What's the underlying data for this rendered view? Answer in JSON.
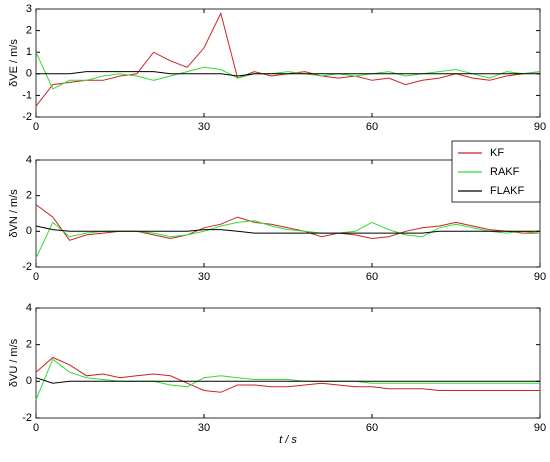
{
  "chart_data": [
    {
      "type": "line",
      "ylabel": "δVE / m/s",
      "x": [
        0,
        3,
        6,
        9,
        12,
        15,
        18,
        21,
        24,
        27,
        30,
        33,
        36,
        39,
        42,
        45,
        48,
        51,
        54,
        57,
        60,
        63,
        66,
        69,
        72,
        75,
        78,
        81,
        84,
        87,
        90
      ],
      "xlim": [
        0,
        90
      ],
      "xticks": [
        0,
        30,
        60,
        90
      ],
      "ylim": [
        -2,
        3
      ],
      "yticks": [
        -2,
        -1,
        0,
        1,
        2,
        3
      ],
      "series": [
        {
          "color": "#cc2222",
          "values": [
            -1.5,
            -0.5,
            -0.4,
            -0.3,
            -0.3,
            -0.1,
            0.0,
            1.0,
            0.6,
            0.3,
            1.2,
            2.8,
            -0.2,
            0.1,
            -0.1,
            0.0,
            0.1,
            -0.1,
            -0.2,
            -0.1,
            -0.3,
            -0.2,
            -0.5,
            -0.3,
            -0.2,
            0.0,
            -0.2,
            -0.3,
            -0.1,
            0.0,
            0.1
          ]
        },
        {
          "color": "#33dd33",
          "values": [
            1.0,
            -0.7,
            -0.3,
            -0.3,
            -0.1,
            0.0,
            -0.1,
            -0.3,
            -0.1,
            0.1,
            0.3,
            0.2,
            -0.2,
            0.0,
            0.0,
            0.1,
            0.0,
            -0.1,
            0.0,
            -0.1,
            0.0,
            0.1,
            -0.1,
            0.0,
            0.1,
            0.2,
            0.0,
            -0.2,
            0.1,
            0.0,
            0.1
          ]
        },
        {
          "color": "#000000",
          "values": [
            0.0,
            0.0,
            0.0,
            0.1,
            0.1,
            0.1,
            0.1,
            0.1,
            0.0,
            0.0,
            0.0,
            0.0,
            -0.1,
            0.0,
            0.0,
            0.0,
            0.0,
            0.0,
            0.0,
            0.0,
            0.0,
            0.0,
            0.0,
            0.0,
            0.0,
            0.0,
            0.0,
            0.0,
            0.0,
            0.0,
            0.0
          ]
        }
      ]
    },
    {
      "type": "line",
      "ylabel": "δVN / m/s",
      "legend": "upper right",
      "x": [
        0,
        3,
        6,
        9,
        12,
        15,
        18,
        21,
        24,
        27,
        30,
        33,
        36,
        39,
        42,
        45,
        48,
        51,
        54,
        57,
        60,
        63,
        66,
        69,
        72,
        75,
        78,
        81,
        84,
        87,
        90
      ],
      "xlim": [
        0,
        90
      ],
      "xticks": [
        0,
        30,
        60,
        90
      ],
      "ylim": [
        -2,
        4
      ],
      "yticks": [
        -2,
        0,
        2,
        4
      ],
      "series": [
        {
          "name": "KF",
          "color": "#cc2222",
          "values": [
            1.5,
            0.8,
            -0.5,
            -0.2,
            -0.1,
            0.0,
            0.0,
            -0.2,
            -0.4,
            -0.2,
            0.2,
            0.4,
            0.8,
            0.5,
            0.4,
            0.2,
            0.0,
            -0.3,
            -0.1,
            -0.2,
            -0.4,
            -0.3,
            0.0,
            0.2,
            0.3,
            0.5,
            0.3,
            0.1,
            0.0,
            -0.1,
            -0.1
          ]
        },
        {
          "name": "RAKF",
          "color": "#33dd33",
          "values": [
            -1.5,
            0.5,
            -0.3,
            -0.1,
            0.0,
            0.0,
            0.0,
            -0.1,
            -0.3,
            -0.2,
            0.0,
            0.3,
            0.5,
            0.6,
            0.3,
            0.1,
            0.0,
            -0.1,
            -0.1,
            0.0,
            0.5,
            0.1,
            -0.2,
            -0.3,
            0.2,
            0.4,
            0.2,
            0.0,
            -0.1,
            0.0,
            -0.1
          ]
        },
        {
          "name": "FLAKF",
          "color": "#000000",
          "values": [
            0.3,
            0.1,
            0.0,
            0.0,
            0.0,
            0.0,
            0.0,
            0.0,
            0.0,
            0.0,
            0.1,
            0.1,
            0.0,
            -0.1,
            -0.1,
            -0.1,
            -0.1,
            -0.1,
            -0.1,
            -0.1,
            -0.1,
            -0.1,
            -0.1,
            -0.1,
            0.0,
            0.0,
            0.0,
            0.0,
            0.0,
            0.0,
            0.0
          ]
        }
      ]
    },
    {
      "type": "line",
      "ylabel": "δVU / m/s",
      "xlabel": "t / s",
      "x": [
        0,
        3,
        6,
        9,
        12,
        15,
        18,
        21,
        24,
        27,
        30,
        33,
        36,
        39,
        42,
        45,
        48,
        51,
        54,
        57,
        60,
        63,
        66,
        69,
        72,
        75,
        78,
        81,
        84,
        87,
        90
      ],
      "xlim": [
        0,
        90
      ],
      "xticks": [
        0,
        30,
        60,
        90
      ],
      "ylim": [
        -2,
        4
      ],
      "yticks": [
        -2,
        0,
        2,
        4
      ],
      "series": [
        {
          "color": "#cc2222",
          "values": [
            0.5,
            1.3,
            0.9,
            0.3,
            0.4,
            0.2,
            0.3,
            0.4,
            0.3,
            -0.1,
            -0.5,
            -0.6,
            -0.2,
            -0.2,
            -0.3,
            -0.3,
            -0.2,
            -0.1,
            -0.2,
            -0.3,
            -0.3,
            -0.4,
            -0.4,
            -0.4,
            -0.5,
            -0.5,
            -0.5,
            -0.5,
            -0.5,
            -0.5,
            -0.5
          ]
        },
        {
          "color": "#33dd33",
          "values": [
            -1.0,
            1.2,
            0.5,
            0.2,
            0.1,
            0.0,
            0.0,
            0.0,
            -0.2,
            -0.3,
            0.2,
            0.3,
            0.2,
            0.1,
            0.1,
            0.1,
            0.0,
            0.0,
            0.0,
            0.0,
            -0.1,
            -0.1,
            -0.1,
            -0.1,
            -0.1,
            -0.1,
            -0.1,
            -0.1,
            -0.1,
            -0.1,
            -0.1
          ]
        },
        {
          "color": "#000000",
          "values": [
            0.2,
            -0.1,
            0.0,
            0.0,
            0.0,
            0.0,
            0.0,
            0.0,
            0.0,
            0.0,
            0.0,
            0.0,
            0.0,
            0.0,
            0.0,
            0.0,
            0.0,
            0.0,
            0.0,
            0.0,
            0.0,
            0.0,
            0.0,
            0.0,
            0.0,
            0.0,
            0.0,
            0.0,
            0.0,
            0.0,
            0.0
          ]
        }
      ]
    }
  ]
}
